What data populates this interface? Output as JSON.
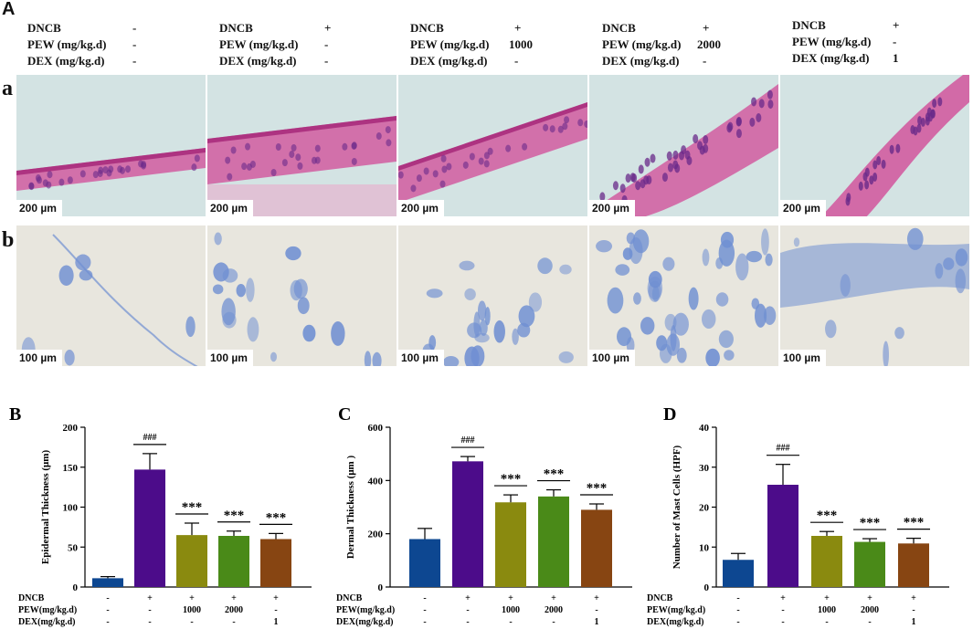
{
  "panel_A": {
    "label": "A",
    "row_labels": [
      "a",
      "b"
    ],
    "condition_keys": [
      "DNCB",
      "PEW (mg/kg.d)",
      "DEX (mg/kg.d)"
    ],
    "groups": [
      {
        "DNCB": "-",
        "PEW": "-",
        "DEX": "-"
      },
      {
        "DNCB": "+",
        "PEW": "-",
        "DEX": "-"
      },
      {
        "DNCB": "+",
        "PEW": "1000",
        "DEX": "-"
      },
      {
        "DNCB": "+",
        "PEW": "2000",
        "DEX": "-"
      },
      {
        "DNCB": "+",
        "PEW": "-",
        "DEX": "1"
      }
    ],
    "scalebar_row_a": "200 µm",
    "scalebar_row_b": "100 µm",
    "colors": {
      "he_bg": "#d3e3e3",
      "he_tissue": "#d15ca0",
      "he_nuclei": "#6a2a8a",
      "tb_bg": "#e8e6de",
      "tb_stain": "#6f8fd2"
    }
  },
  "chart_data": [
    {
      "panel_label": "B",
      "type": "bar",
      "ylabel": "Epidermal Thickness (μm)",
      "ylim": [
        0,
        200
      ],
      "yticks": [
        0,
        50,
        100,
        150,
        200
      ],
      "values": [
        11,
        147,
        65,
        64,
        60
      ],
      "errors": [
        2,
        20,
        15,
        6,
        7
      ],
      "sig": [
        "",
        "###",
        "***",
        "***",
        "***"
      ]
    },
    {
      "panel_label": "C",
      "type": "bar",
      "ylabel": "Dermal Thickness (μm )",
      "ylim": [
        0,
        600
      ],
      "yticks": [
        0,
        200,
        400,
        600
      ],
      "values": [
        180,
        472,
        318,
        340,
        290
      ],
      "errors": [
        40,
        18,
        28,
        25,
        22
      ],
      "sig": [
        "",
        "###",
        "***",
        "***",
        "***"
      ]
    },
    {
      "panel_label": "D",
      "type": "bar",
      "ylabel": "Number of Mast Cells (HPF)",
      "ylim": [
        0,
        40
      ],
      "yticks": [
        0,
        10,
        20,
        30,
        40
      ],
      "values": [
        6.8,
        25.6,
        12.8,
        11.3,
        10.9
      ],
      "errors": [
        1.6,
        5.1,
        1.1,
        0.8,
        1.3
      ],
      "sig": [
        "",
        "###",
        "***",
        "***",
        "***"
      ]
    }
  ],
  "bar_colors": [
    "#0d4791",
    "#4c0c8a",
    "#8a8a0f",
    "#4a8a18",
    "#874512"
  ],
  "chart_table": {
    "row_labels": [
      "DNCB",
      "PEW(mg/kg.d)",
      "DEX(mg/kg.d)"
    ],
    "rows": [
      [
        "-",
        "+",
        "+",
        "+",
        "+"
      ],
      [
        "-",
        "-",
        "1000",
        "2000",
        "-"
      ],
      [
        "-",
        "-",
        "-",
        "-",
        "1"
      ]
    ]
  }
}
